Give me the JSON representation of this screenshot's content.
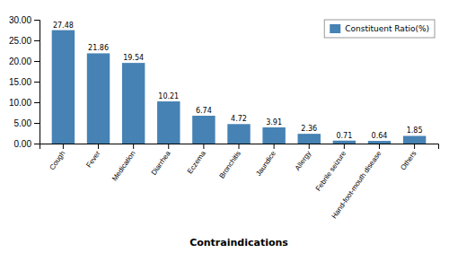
{
  "chart_data": {
    "type": "bar",
    "categories": [
      "Cough",
      "Fever",
      "Medication",
      "Diarrhea",
      "Eczema",
      "Bronchitis",
      "Jaundice",
      "Allergy",
      "Febrile seizure",
      "Hand-foot-mouth disease",
      "Others"
    ],
    "series": [
      {
        "name": "Constituent Ratio(%)",
        "values": [
          27.48,
          21.86,
          19.54,
          10.21,
          6.74,
          4.72,
          3.91,
          2.36,
          0.71,
          0.64,
          1.85
        ]
      }
    ],
    "xlabel": "Contraindications",
    "ylim": [
      0,
      30.0
    ],
    "yticks": [
      {
        "value": 0.0,
        "label": "0.00"
      },
      {
        "value": 5.0,
        "label": "5.00"
      },
      {
        "value": 10.0,
        "label": "10.00"
      },
      {
        "value": 15.0,
        "label": "15.00"
      },
      {
        "value": 20.0,
        "label": "20.00"
      },
      {
        "value": 25.0,
        "label": "25.00"
      },
      {
        "value": 30.0,
        "label": "30.00"
      }
    ],
    "data_labels": true,
    "legend": "upper right"
  }
}
